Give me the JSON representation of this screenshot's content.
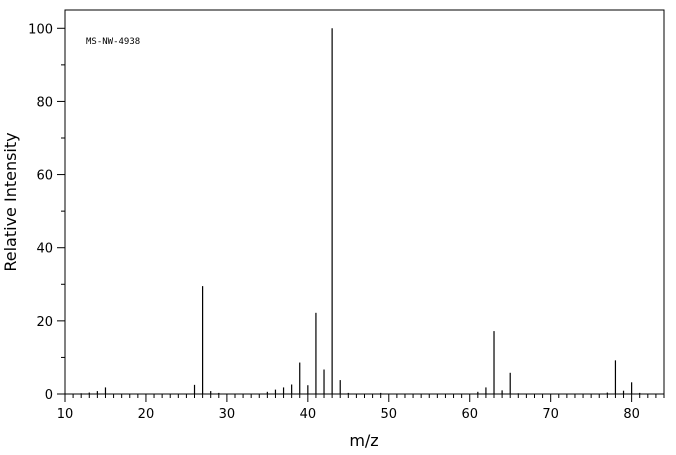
{
  "chart_data": {
    "type": "bar",
    "annotation": "MS-NW-4938",
    "xlabel": "m/z",
    "ylabel": "Relative Intensity",
    "xlim": [
      10,
      84
    ],
    "ylim": [
      0,
      105
    ],
    "x_ticks": [
      10,
      20,
      30,
      40,
      50,
      60,
      70,
      80
    ],
    "y_ticks": [
      0,
      20,
      40,
      60,
      80,
      100
    ],
    "grid": false,
    "peaks": [
      {
        "mz": 12,
        "intensity": 0.2
      },
      {
        "mz": 13,
        "intensity": 0.4
      },
      {
        "mz": 14,
        "intensity": 0.8
      },
      {
        "mz": 15,
        "intensity": 1.8
      },
      {
        "mz": 26,
        "intensity": 2.5
      },
      {
        "mz": 27,
        "intensity": 29.5
      },
      {
        "mz": 28,
        "intensity": 0.8
      },
      {
        "mz": 29,
        "intensity": 0.3
      },
      {
        "mz": 35,
        "intensity": 0.6
      },
      {
        "mz": 36,
        "intensity": 1.2
      },
      {
        "mz": 37,
        "intensity": 1.8
      },
      {
        "mz": 38,
        "intensity": 2.6
      },
      {
        "mz": 39,
        "intensity": 8.6
      },
      {
        "mz": 40,
        "intensity": 2.4
      },
      {
        "mz": 41,
        "intensity": 22.2
      },
      {
        "mz": 42,
        "intensity": 6.7
      },
      {
        "mz": 43,
        "intensity": 100
      },
      {
        "mz": 44,
        "intensity": 3.8
      },
      {
        "mz": 45,
        "intensity": 0.3
      },
      {
        "mz": 49,
        "intensity": 0.3
      },
      {
        "mz": 61,
        "intensity": 0.6
      },
      {
        "mz": 62,
        "intensity": 1.8
      },
      {
        "mz": 63,
        "intensity": 17.2
      },
      {
        "mz": 64,
        "intensity": 1.0
      },
      {
        "mz": 65,
        "intensity": 5.8
      },
      {
        "mz": 66,
        "intensity": 0.2
      },
      {
        "mz": 77,
        "intensity": 0.4
      },
      {
        "mz": 78,
        "intensity": 9.2
      },
      {
        "mz": 79,
        "intensity": 0.9
      },
      {
        "mz": 80,
        "intensity": 3.2
      },
      {
        "mz": 81,
        "intensity": 0.3
      }
    ]
  }
}
